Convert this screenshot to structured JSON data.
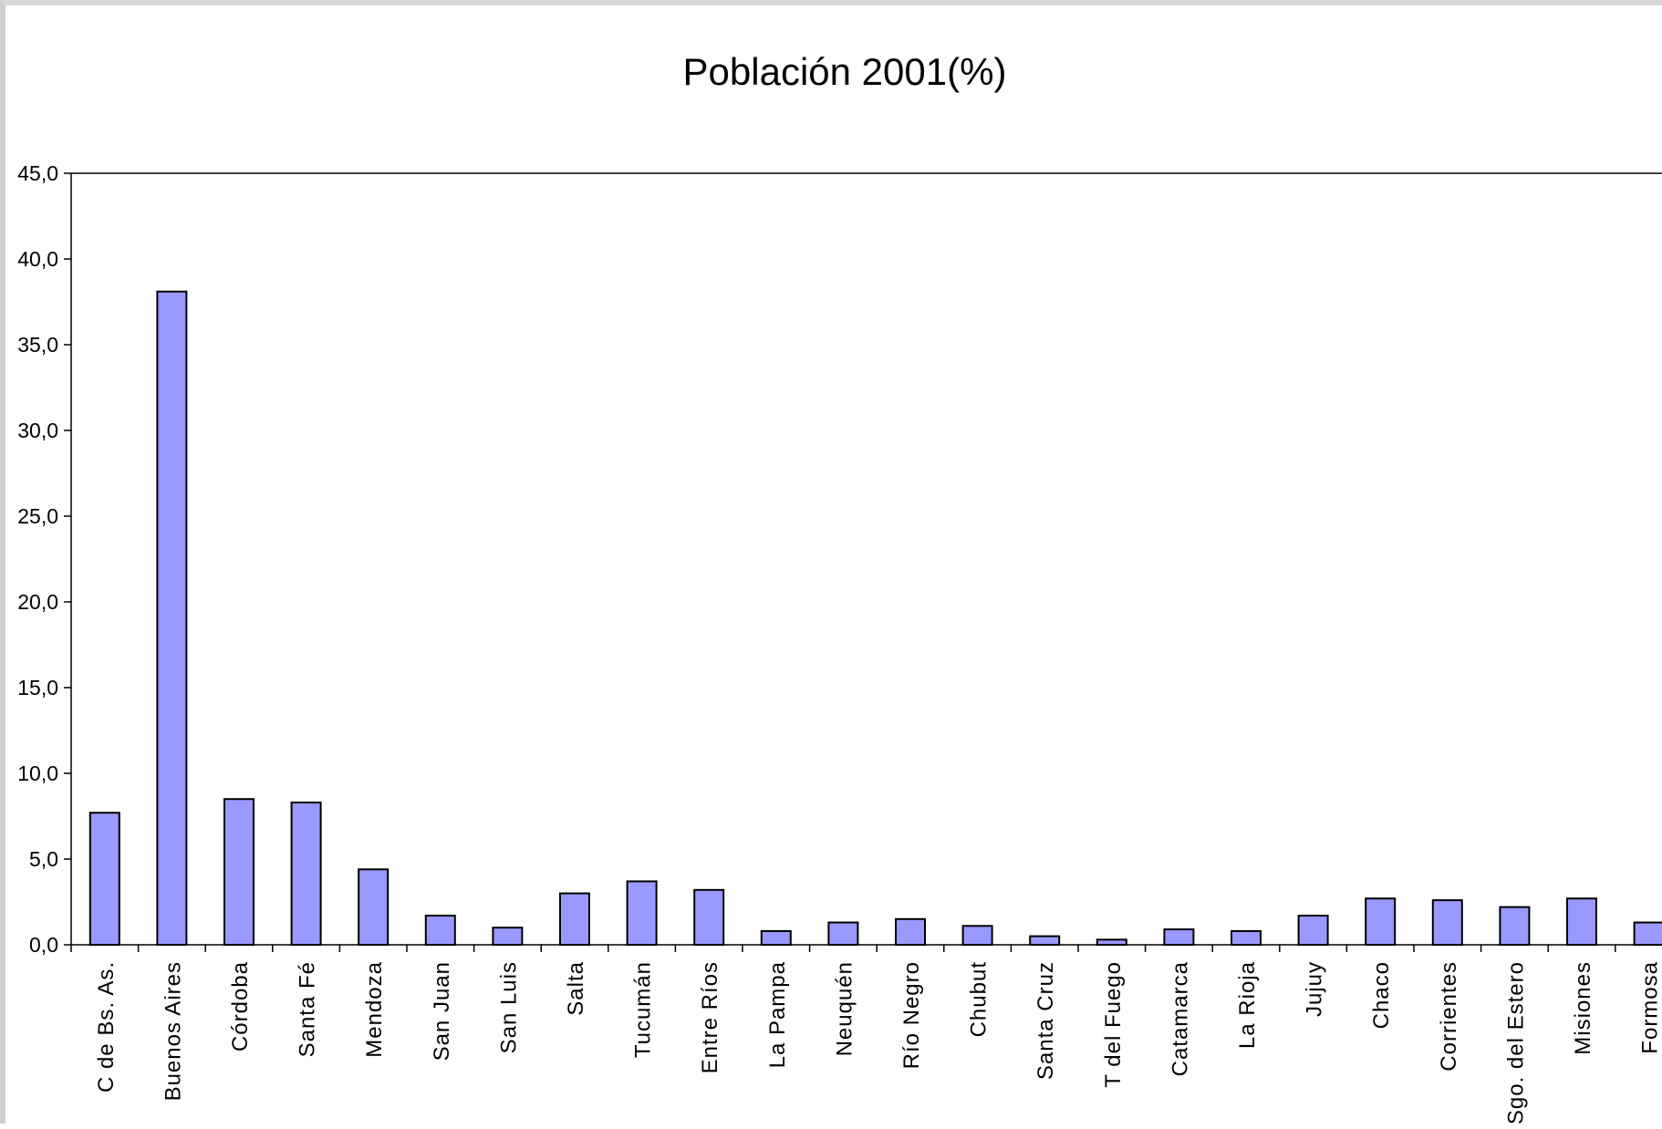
{
  "chart_data": {
    "type": "bar",
    "title": "Población 2001(%)",
    "xlabel": "",
    "ylabel": "",
    "ylim": [
      0,
      45
    ],
    "yticks": [
      "0,0",
      "5,0",
      "10,0",
      "15,0",
      "20,0",
      "25,0",
      "30,0",
      "35,0",
      "40,0",
      "45,0"
    ],
    "grid": false,
    "legend": "none",
    "bar_color": "#9999ff",
    "bar_edge_color": "#000000",
    "categories": [
      "C de Bs. As.",
      "Buenos Aires",
      "Córdoba",
      "Santa Fé",
      "Mendoza",
      "San Juan",
      "San Luis",
      "Salta",
      "Tucumán",
      "Entre Ríos",
      "La Pampa",
      "Neuquén",
      "Río Negro",
      "Chubut",
      "Santa Cruz",
      "T del Fuego",
      "Catamarca",
      "La Rioja",
      "Jujuy",
      "Chaco",
      "Corrientes",
      "Sgo. del Estero",
      "Misiones",
      "Formosa"
    ],
    "values": [
      7.7,
      38.1,
      8.5,
      8.3,
      4.4,
      1.7,
      1.0,
      3.0,
      3.7,
      3.2,
      0.8,
      1.3,
      1.5,
      1.1,
      0.5,
      0.3,
      0.9,
      0.8,
      1.7,
      2.7,
      2.6,
      2.2,
      2.7,
      1.3
    ]
  }
}
